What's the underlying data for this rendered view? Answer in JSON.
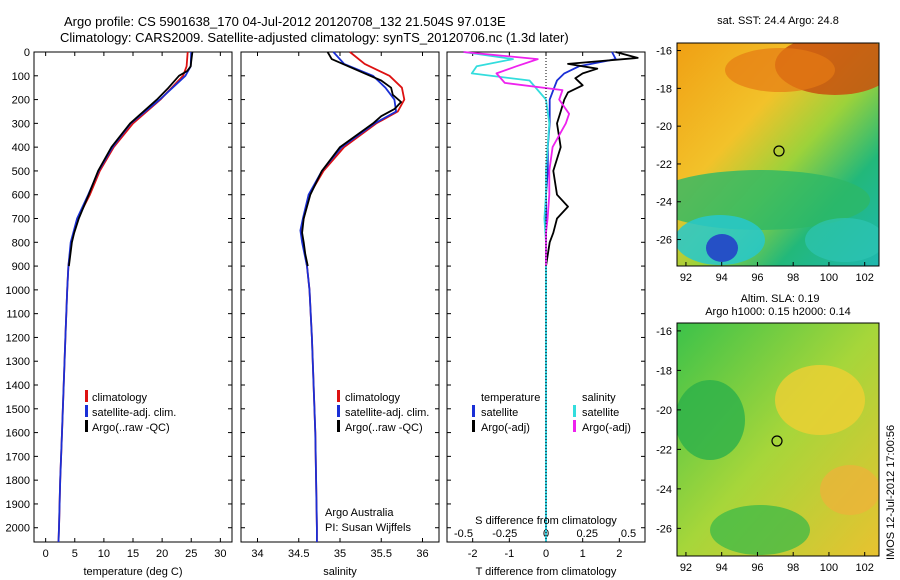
{
  "header": {
    "line1": "Argo profile: CS 5901638_170 04-Jul-2012 20120708_132 21.504S 97.013E",
    "line2": "Climatology: CARS2009. Satellite-adjusted climatology: synTS_20120706.nc (1.3d later)"
  },
  "colors": {
    "climatology": "#dd1111",
    "satellite": "#1a2fd6",
    "argo": "#000000",
    "sal_satellite": "#33dddd",
    "sal_argo": "#ee22ee"
  },
  "depth_ticks": [
    "0",
    "100",
    "200",
    "300",
    "400",
    "500",
    "600",
    "700",
    "800",
    "900",
    "1000",
    "1100",
    "1200",
    "1300",
    "1400",
    "1500",
    "1600",
    "1700",
    "1800",
    "1900",
    "2000"
  ],
  "chart_data": [
    {
      "type": "line",
      "xlabel": "temperature (deg C)",
      "xlim": [
        -2,
        32
      ],
      "ylim": [
        0,
        2060
      ],
      "xticks": [
        "0",
        "5",
        "10",
        "15",
        "20",
        "25",
        "30"
      ],
      "legend": [
        "climatology",
        "satellite-adj. clim.",
        "Argo(..raw -QC)"
      ],
      "series": [
        {
          "name": "climatology",
          "color": "#dd1111",
          "depth": [
            0,
            60,
            100,
            200,
            300,
            400,
            500,
            600,
            700,
            800,
            900,
            1000,
            1200,
            1400,
            1600,
            1800,
            2000,
            2060
          ],
          "values": [
            24.4,
            24.2,
            23.6,
            19.7,
            15.0,
            11.7,
            9.3,
            7.6,
            5.5,
            4.4,
            3.9,
            3.7,
            3.4,
            3.1,
            2.8,
            2.5,
            2.3,
            2.2
          ]
        },
        {
          "name": "satellite-adj. clim.",
          "color": "#1a2fd6",
          "depth": [
            0,
            60,
            100,
            200,
            300,
            400,
            500,
            600,
            700,
            800,
            900,
            1000,
            1200,
            1400,
            1600,
            1800,
            2000,
            2060
          ],
          "values": [
            25.0,
            24.9,
            24.0,
            19.6,
            14.6,
            11.5,
            9.1,
            7.3,
            5.4,
            4.3,
            3.9,
            3.7,
            3.4,
            3.1,
            2.8,
            2.5,
            2.3,
            2.2
          ]
        },
        {
          "name": "Argo(..raw -QC)",
          "color": "#000000",
          "depth": [
            0,
            40,
            60,
            80,
            100,
            150,
            200,
            300,
            400,
            500,
            600,
            700,
            760,
            800,
            900
          ],
          "values": [
            25.2,
            25.0,
            24.9,
            24.3,
            22.9,
            21.1,
            19.1,
            14.5,
            11.3,
            9.0,
            7.4,
            5.7,
            4.9,
            4.5,
            4.0
          ]
        }
      ]
    },
    {
      "type": "line",
      "xlabel": "salinity",
      "xlim": [
        33.8,
        36.2
      ],
      "ylim": [
        0,
        2060
      ],
      "xticks": [
        "34",
        "34.5",
        "35",
        "35.5",
        "36"
      ],
      "legend": [
        "climatology",
        "satellite-adj. clim.",
        "Argo(..raw -QC)"
      ],
      "series": [
        {
          "name": "climatology",
          "color": "#dd1111",
          "depth": [
            0,
            50,
            100,
            150,
            200,
            250,
            300,
            400,
            500,
            600,
            700,
            750,
            800,
            900,
            1000,
            1200,
            1400,
            1600,
            1800,
            2000,
            2060
          ],
          "values": [
            35.12,
            35.3,
            35.6,
            35.75,
            35.78,
            35.7,
            35.44,
            35.05,
            34.8,
            34.63,
            34.56,
            34.53,
            34.55,
            34.6,
            34.63,
            34.66,
            34.68,
            34.7,
            34.71,
            34.72,
            34.72
          ]
        },
        {
          "name": "satellite-adj. clim.",
          "color": "#1a2fd6",
          "depth": [
            0,
            50,
            100,
            150,
            200,
            250,
            300,
            400,
            500,
            600,
            700,
            750,
            800,
            900,
            1000,
            1200,
            1400,
            1600,
            1800,
            2000,
            2060
          ],
          "values": [
            34.92,
            35.05,
            35.4,
            35.55,
            35.66,
            35.68,
            35.42,
            35.02,
            34.78,
            34.62,
            34.55,
            34.52,
            34.54,
            34.6,
            34.63,
            34.66,
            34.68,
            34.7,
            34.71,
            34.72,
            34.72
          ]
        },
        {
          "name": "Argo(..raw -QC)",
          "color": "#000000",
          "depth": [
            0,
            30,
            60,
            90,
            120,
            150,
            180,
            210,
            240,
            270,
            300,
            400,
            500,
            600,
            700,
            760,
            800,
            850,
            900
          ],
          "values": [
            34.85,
            34.9,
            35.1,
            35.3,
            35.5,
            35.62,
            35.64,
            35.74,
            35.66,
            35.5,
            35.4,
            35.0,
            34.78,
            34.64,
            34.56,
            34.54,
            34.56,
            34.58,
            34.61
          ]
        }
      ]
    },
    {
      "type": "line",
      "xlabel": "T difference from climatology",
      "top_label": "S difference from climatology",
      "xlim": [
        -2.7,
        2.7
      ],
      "ylim": [
        0,
        2060
      ],
      "xticks": [
        "-2",
        "-1",
        "0",
        "1",
        "2"
      ],
      "top_ticks": [
        "-0.5",
        "-0.25",
        "0",
        "0.25",
        "0.5"
      ],
      "legend_headers": [
        "temperature",
        "salinity"
      ],
      "legend": [
        "satellite",
        "Argo(-adj)",
        "satellite",
        "Argo(-adj)"
      ],
      "series": [
        {
          "name": "satellite",
          "color": "#1a2fd6",
          "depth": [
            0,
            30,
            60,
            90,
            120,
            160,
            200,
            300,
            400,
            500,
            600,
            800,
            1000,
            1200,
            1500,
            1800,
            2060
          ],
          "values": [
            1.8,
            1.9,
            0.9,
            0.5,
            0.3,
            0.2,
            0.1,
            0.1,
            0.05,
            0.05,
            0.0,
            0.0,
            0.0,
            0.0,
            0.0,
            0.0,
            0.0
          ]
        },
        {
          "name": "Argo(-adj)",
          "color": "#000000",
          "depth": [
            0,
            25,
            50,
            70,
            90,
            110,
            140,
            170,
            200,
            250,
            300,
            400,
            500,
            600,
            650,
            700,
            760,
            800,
            900
          ],
          "values": [
            1.9,
            2.5,
            0.6,
            1.4,
            1.0,
            0.8,
            1.0,
            0.6,
            0.5,
            0.4,
            0.3,
            0.4,
            0.2,
            0.3,
            0.6,
            0.3,
            0.2,
            0.1,
            0.0
          ]
        },
        {
          "name": "satellite",
          "color": "#33dddd",
          "depth": [
            0,
            30,
            60,
            90,
            120,
            200,
            300,
            400,
            500,
            600,
            700,
            800,
            1000,
            1200,
            1500,
            1800,
            2060
          ],
          "values": [
            -0.5,
            -0.2,
            -0.42,
            -0.45,
            -0.1,
            0.0,
            0.02,
            0.01,
            0.0,
            0.0,
            -0.01,
            0.0,
            0.0,
            0.0,
            0.0,
            0.0,
            0.0
          ]
        },
        {
          "name": "Argo(-adj)",
          "color": "#ee22ee",
          "depth": [
            0,
            30,
            60,
            90,
            130,
            160,
            200,
            260,
            300,
            400,
            500,
            600,
            700,
            760,
            800,
            900
          ],
          "values": [
            -0.5,
            -0.05,
            -0.18,
            -0.3,
            -0.25,
            0.1,
            0.08,
            0.14,
            0.12,
            0.04,
            0.02,
            0.02,
            0.01,
            0.0,
            0.0,
            0.0
          ]
        }
      ]
    }
  ],
  "sst_map": {
    "title": "sat. SST: 24.4  Argo: 24.8",
    "xticks": [
      "92",
      "94",
      "96",
      "98",
      "100",
      "102"
    ],
    "yticks": [
      "-16",
      "-18",
      "-20",
      "-22",
      "-24",
      "-26"
    ]
  },
  "sla_map": {
    "title_line1": "Altim. SLA: 0.19",
    "title_line2": "Argo h1000: 0.15 h2000: 0.14",
    "xticks": [
      "92",
      "94",
      "96",
      "98",
      "100",
      "102"
    ],
    "yticks": [
      "-16",
      "-18",
      "-20",
      "-22",
      "-24",
      "-26"
    ]
  },
  "footer_vertical": "IMOS 12-Jul-2012 17:00:56"
}
